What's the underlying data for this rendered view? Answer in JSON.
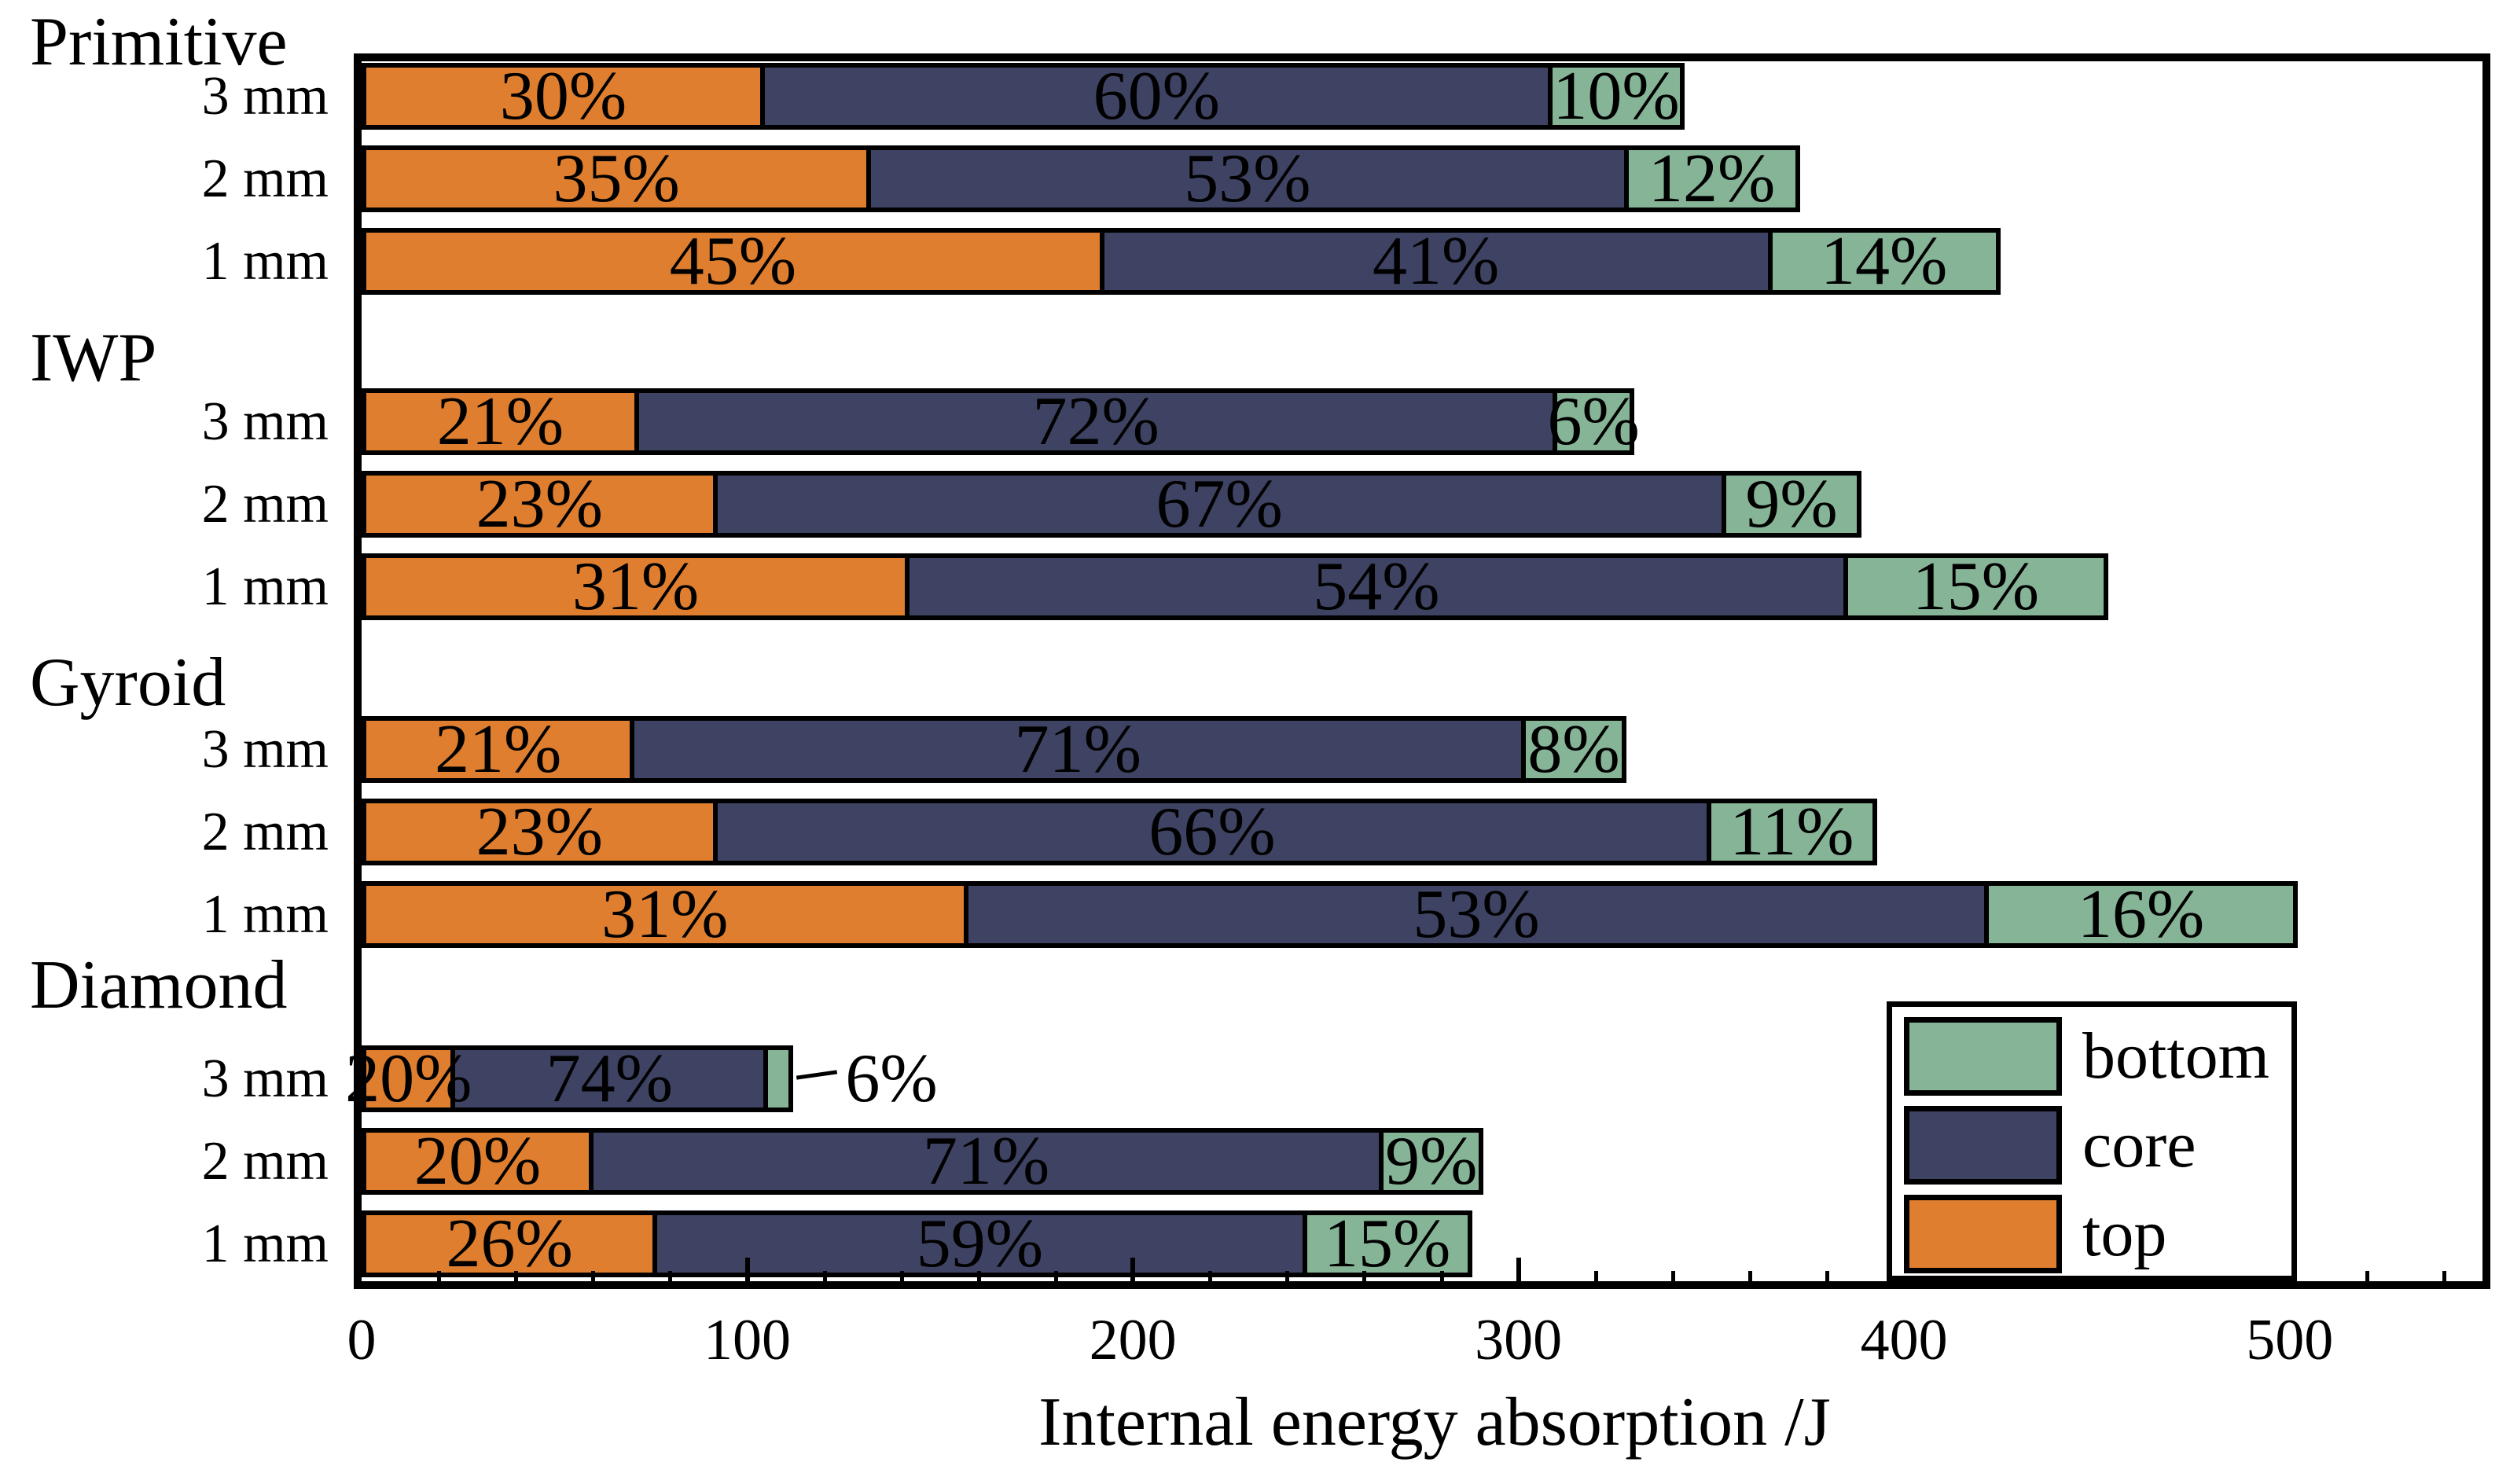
{
  "chart_data": {
    "type": "bar",
    "orientation": "horizontal",
    "stacked": true,
    "title": "",
    "xlabel": "Internal energy absorption /J",
    "ylabel": "",
    "units": "J",
    "xlim": [
      0,
      550
    ],
    "x_major_ticks": [
      0,
      100,
      200,
      300,
      400,
      500
    ],
    "x_minor_step": 20,
    "grid": false,
    "legend": {
      "position": "lower right",
      "entries": [
        {
          "label": "bottom",
          "color": "#86B497"
        },
        {
          "label": "core",
          "color": "#3E4363"
        },
        {
          "label": "top",
          "color": "#DF7E2E"
        }
      ]
    },
    "series_order": [
      "top",
      "core",
      "bottom"
    ],
    "groups": [
      {
        "name": "Primitive",
        "bars": [
          {
            "thickness": "3 mm",
            "total_J": 343,
            "segments": [
              {
                "series": "top",
                "pct": 30
              },
              {
                "series": "core",
                "pct": 60
              },
              {
                "series": "bottom",
                "pct": 10
              }
            ]
          },
          {
            "thickness": "2 mm",
            "total_J": 373,
            "segments": [
              {
                "series": "top",
                "pct": 35
              },
              {
                "series": "core",
                "pct": 53
              },
              {
                "series": "bottom",
                "pct": 12
              }
            ]
          },
          {
            "thickness": "1 mm",
            "total_J": 425,
            "segments": [
              {
                "series": "top",
                "pct": 45
              },
              {
                "series": "core",
                "pct": 41
              },
              {
                "series": "bottom",
                "pct": 14
              }
            ]
          }
        ]
      },
      {
        "name": "IWP",
        "bars": [
          {
            "thickness": "3 mm",
            "total_J": 330,
            "segments": [
              {
                "series": "top",
                "pct": 21
              },
              {
                "series": "core",
                "pct": 72
              },
              {
                "series": "bottom",
                "pct": 6
              }
            ]
          },
          {
            "thickness": "2 mm",
            "total_J": 389,
            "segments": [
              {
                "series": "top",
                "pct": 23
              },
              {
                "series": "core",
                "pct": 67
              },
              {
                "series": "bottom",
                "pct": 9
              }
            ]
          },
          {
            "thickness": "1 mm",
            "total_J": 453,
            "segments": [
              {
                "series": "top",
                "pct": 31
              },
              {
                "series": "core",
                "pct": 54
              },
              {
                "series": "bottom",
                "pct": 15
              }
            ]
          }
        ]
      },
      {
        "name": "Gyroid",
        "bars": [
          {
            "thickness": "3 mm",
            "total_J": 328,
            "segments": [
              {
                "series": "top",
                "pct": 21
              },
              {
                "series": "core",
                "pct": 71
              },
              {
                "series": "bottom",
                "pct": 8
              }
            ]
          },
          {
            "thickness": "2 mm",
            "total_J": 393,
            "segments": [
              {
                "series": "top",
                "pct": 23
              },
              {
                "series": "core",
                "pct": 66
              },
              {
                "series": "bottom",
                "pct": 11
              }
            ]
          },
          {
            "thickness": "1 mm",
            "total_J": 502,
            "segments": [
              {
                "series": "top",
                "pct": 31
              },
              {
                "series": "core",
                "pct": 53
              },
              {
                "series": "bottom",
                "pct": 16
              }
            ]
          }
        ]
      },
      {
        "name": "Diamond",
        "bars": [
          {
            "thickness": "3 mm",
            "total_J": 112,
            "segments": [
              {
                "series": "top",
                "pct": 20
              },
              {
                "series": "core",
                "pct": 74
              },
              {
                "series": "bottom",
                "pct": 6,
                "label_outside": true
              }
            ]
          },
          {
            "thickness": "2 mm",
            "total_J": 291,
            "segments": [
              {
                "series": "top",
                "pct": 20
              },
              {
                "series": "core",
                "pct": 71
              },
              {
                "series": "bottom",
                "pct": 9
              }
            ]
          },
          {
            "thickness": "1 mm",
            "total_J": 288,
            "segments": [
              {
                "series": "top",
                "pct": 26
              },
              {
                "series": "core",
                "pct": 59
              },
              {
                "series": "bottom",
                "pct": 15
              }
            ]
          }
        ]
      }
    ],
    "annotation": {
      "target": "Diamond 3 mm bottom segment",
      "label": "6%",
      "style": "leader line to the right of the bar"
    }
  }
}
